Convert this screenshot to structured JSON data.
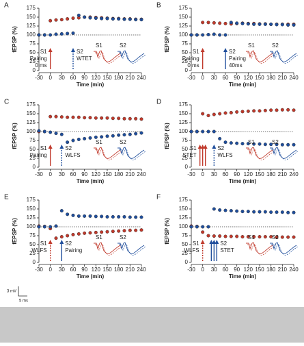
{
  "chart_data": [
    {
      "type": "scatter",
      "panel": "A",
      "ylabel": "fEPSP (%)",
      "xlabel": "Time (min)",
      "x": [
        -30,
        -15,
        0,
        15,
        30,
        45,
        60,
        75,
        90,
        105,
        120,
        135,
        150,
        165,
        180,
        195,
        210,
        225,
        240
      ],
      "xlim": [
        -30,
        240
      ],
      "xticks": [
        -30,
        0,
        30,
        60,
        90,
        120,
        150,
        180,
        210,
        240
      ],
      "ylim": [
        0,
        175
      ],
      "yticks": [
        0,
        25,
        50,
        75,
        100,
        125,
        150,
        175
      ],
      "reference_line": 100,
      "series": [
        {
          "name": "S1",
          "color": "#c0392b",
          "values": [
            100,
            100,
            140,
            142,
            143,
            145,
            147,
            148,
            150,
            150,
            149,
            148,
            147,
            146,
            146,
            145,
            145,
            144,
            144
          ]
        },
        {
          "name": "S2",
          "color": "#1f4e9c",
          "values": [
            100,
            100,
            100,
            102,
            103,
            104,
            105,
            155,
            150,
            148,
            147,
            146,
            146,
            145,
            145,
            144,
            144,
            143,
            143
          ]
        }
      ],
      "stim1_x": 0,
      "stim1_style": "solid",
      "stim1_count": 1,
      "stim1_labels": [
        "S1",
        "Pairing",
        "0 ms"
      ],
      "stim2_x": 60,
      "stim2_style": "dashed",
      "stim2_count": 1,
      "stim2_labels": [
        "S2",
        "WTET"
      ],
      "inset_labels": [
        "S1",
        "S2"
      ]
    },
    {
      "type": "scatter",
      "panel": "B",
      "ylabel": "fEPSP (%)",
      "xlabel": "Time (min)",
      "x": [
        -30,
        -15,
        0,
        15,
        30,
        45,
        60,
        75,
        90,
        105,
        120,
        135,
        150,
        165,
        180,
        195,
        210,
        225,
        240
      ],
      "xlim": [
        -30,
        240
      ],
      "xticks": [
        -30,
        0,
        30,
        60,
        90,
        120,
        150,
        180,
        210,
        240
      ],
      "ylim": [
        0,
        175
      ],
      "yticks": [
        0,
        25,
        50,
        75,
        100,
        125,
        150,
        175
      ],
      "reference_line": 100,
      "series": [
        {
          "name": "S1",
          "color": "#c0392b",
          "values": [
            100,
            100,
            135,
            135,
            134,
            133,
            132,
            131,
            132,
            133,
            132,
            132,
            131,
            131,
            130,
            130,
            130,
            130,
            130
          ]
        },
        {
          "name": "S2",
          "color": "#1f4e9c",
          "values": [
            100,
            100,
            100,
            101,
            102,
            100,
            100,
            135,
            133,
            132,
            131,
            130,
            130,
            130,
            130,
            129,
            129,
            128,
            128
          ]
        }
      ],
      "stim1_x": 0,
      "stim1_style": "solid",
      "stim1_count": 1,
      "stim1_labels": [
        "S1",
        "Pairing",
        "0 ms"
      ],
      "stim2_x": 60,
      "stim2_style": "solid",
      "stim2_count": 1,
      "stim2_labels": [
        "S2",
        "Pairing",
        "40ms"
      ],
      "inset_labels": [
        "S1",
        "S2"
      ]
    },
    {
      "type": "scatter",
      "panel": "C",
      "ylabel": "fEPSP (%)",
      "xlabel": "Time (min)",
      "x": [
        -30,
        -15,
        0,
        15,
        30,
        45,
        60,
        75,
        90,
        105,
        120,
        135,
        150,
        165,
        180,
        195,
        210,
        225,
        240
      ],
      "xlim": [
        -30,
        240
      ],
      "xticks": [
        -30,
        0,
        30,
        60,
        90,
        120,
        150,
        180,
        210,
        240
      ],
      "ylim": [
        0,
        175
      ],
      "yticks": [
        0,
        25,
        50,
        75,
        100,
        125,
        150,
        175
      ],
      "reference_line": 100,
      "series": [
        {
          "name": "S1",
          "color": "#c0392b",
          "values": [
            100,
            100,
            142,
            142,
            141,
            140,
            140,
            140,
            139,
            139,
            138,
            138,
            138,
            137,
            137,
            136,
            136,
            136,
            135
          ]
        },
        {
          "name": "S2",
          "color": "#1f4e9c",
          "values": [
            102,
            100,
            98,
            95,
            92,
            70,
            75,
            78,
            80,
            82,
            84,
            85,
            87,
            88,
            90,
            91,
            92,
            94,
            96
          ]
        }
      ],
      "stim1_x": 0,
      "stim1_style": "solid",
      "stim1_count": 1,
      "stim1_labels": [
        "S1",
        "Pairing"
      ],
      "stim2_x": 30,
      "stim2_style": "dashed",
      "stim2_count": 1,
      "stim2_labels": [
        "S2",
        "WLFS"
      ],
      "inset_labels": [
        "S1",
        "S2"
      ]
    },
    {
      "type": "scatter",
      "panel": "D",
      "ylabel": "fEPSP (%)",
      "xlabel": "Time (min)",
      "x": [
        -30,
        -15,
        0,
        15,
        30,
        45,
        60,
        75,
        90,
        105,
        120,
        135,
        150,
        165,
        180,
        195,
        210,
        225,
        240
      ],
      "xlim": [
        -30,
        240
      ],
      "xticks": [
        -30,
        0,
        30,
        60,
        90,
        120,
        150,
        180,
        210,
        240
      ],
      "ylim": [
        0,
        175
      ],
      "yticks": [
        0,
        25,
        50,
        75,
        100,
        125,
        150,
        175
      ],
      "reference_line": 100,
      "series": [
        {
          "name": "S1",
          "color": "#c0392b",
          "values": [
            100,
            100,
            150,
            145,
            148,
            150,
            152,
            153,
            155,
            156,
            157,
            158,
            158,
            159,
            160,
            160,
            161,
            161,
            160
          ]
        },
        {
          "name": "S2",
          "color": "#1f4e9c",
          "values": [
            100,
            100,
            100,
            100,
            100,
            80,
            70,
            68,
            67,
            66,
            66,
            65,
            65,
            64,
            64,
            64,
            63,
            63,
            63
          ]
        }
      ],
      "stim1_x": 0,
      "stim1_style": "solid",
      "stim1_count": 3,
      "stim1_labels": [
        "S1",
        "STET"
      ],
      "stim2_x": 30,
      "stim2_style": "dashed",
      "stim2_count": 1,
      "stim2_labels": [
        "S2",
        "WLFS"
      ],
      "inset_labels": [
        "S1",
        "S2"
      ]
    },
    {
      "type": "scatter",
      "panel": "E",
      "ylabel": "fEPSP (%)",
      "xlabel": "Time (min)",
      "x": [
        -30,
        -15,
        0,
        15,
        30,
        45,
        60,
        75,
        90,
        105,
        120,
        135,
        150,
        165,
        180,
        195,
        210,
        225,
        240
      ],
      "xlim": [
        -30,
        240
      ],
      "xticks": [
        -30,
        0,
        30,
        60,
        90,
        120,
        150,
        180,
        210,
        240
      ],
      "ylim": [
        0,
        175
      ],
      "yticks": [
        0,
        25,
        50,
        75,
        100,
        125,
        150,
        175
      ],
      "reference_line": 100,
      "series": [
        {
          "name": "S1",
          "color": "#c0392b",
          "values": [
            102,
            101,
            95,
            68,
            72,
            75,
            78,
            80,
            82,
            83,
            84,
            85,
            86,
            87,
            88,
            89,
            90,
            90,
            91
          ]
        },
        {
          "name": "S2",
          "color": "#1f4e9c",
          "values": [
            100,
            100,
            100,
            102,
            145,
            135,
            132,
            130,
            130,
            130,
            129,
            129,
            128,
            128,
            128,
            128,
            127,
            127,
            127
          ]
        }
      ],
      "stim1_x": 0,
      "stim1_style": "dashed",
      "stim1_count": 1,
      "stim1_labels": [
        "S1",
        "WLFS"
      ],
      "stim2_x": 30,
      "stim2_style": "solid",
      "stim2_count": 1,
      "stim2_labels": [
        "S2",
        "Pairing"
      ],
      "inset_labels": [
        "S1",
        "S2"
      ]
    },
    {
      "type": "scatter",
      "panel": "F",
      "ylabel": "fEPSP (%)",
      "xlabel": "Time (min)",
      "x": [
        -30,
        -15,
        0,
        15,
        30,
        45,
        60,
        75,
        90,
        105,
        120,
        135,
        150,
        165,
        180,
        195,
        210,
        225,
        240
      ],
      "xlim": [
        -30,
        240
      ],
      "xticks": [
        -30,
        0,
        30,
        60,
        90,
        120,
        150,
        180,
        210,
        240
      ],
      "ylim": [
        0,
        175
      ],
      "yticks": [
        0,
        25,
        50,
        75,
        100,
        125,
        150,
        175
      ],
      "reference_line": 100,
      "series": [
        {
          "name": "S1",
          "color": "#c0392b",
          "values": [
            102,
            101,
            85,
            75,
            74,
            74,
            73,
            73,
            73,
            72,
            72,
            72,
            72,
            72,
            72,
            71,
            71,
            71,
            71
          ]
        },
        {
          "name": "S2",
          "color": "#1f4e9c",
          "values": [
            100,
            100,
            100,
            100,
            150,
            147,
            146,
            145,
            144,
            143,
            143,
            142,
            142,
            142,
            141,
            141,
            141,
            140,
            140
          ]
        }
      ],
      "stim1_x": 0,
      "stim1_style": "dashed",
      "stim1_count": 1,
      "stim1_labels": [
        "S1",
        "WLFS"
      ],
      "stim2_x": 30,
      "stim2_style": "solid",
      "stim2_count": 3,
      "stim2_labels": [
        "S2",
        "STET"
      ],
      "inset_labels": [
        "S1",
        "S2"
      ]
    }
  ],
  "scale_bar": {
    "vertical": "3 mV",
    "horizontal": "5 ms"
  }
}
